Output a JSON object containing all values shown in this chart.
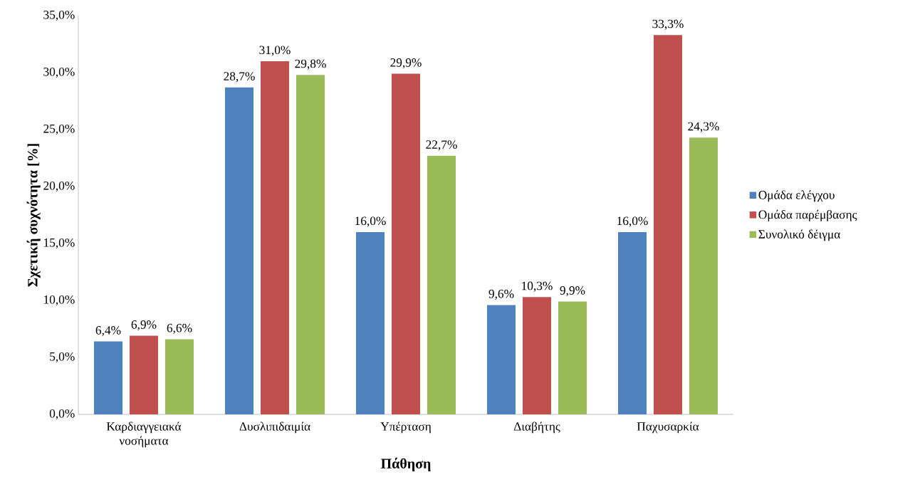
{
  "chart_data": {
    "type": "bar",
    "xlabel": "Πάθηση",
    "ylabel": "Σχετική συχνότητα [%]",
    "categories": [
      "Καρδιαγγειακά νοσήματα",
      "Δυσλιπιδαιμία",
      "Υπέρταση",
      "Διαβήτης",
      "Παχυσαρκία"
    ],
    "series": [
      {
        "name": "Ομάδα ελέγχου",
        "color": "#4f81bd",
        "values": [
          6.4,
          28.7,
          16.0,
          9.6,
          16.0
        ],
        "value_labels": [
          "6,4%",
          "28,7%",
          "16,0%",
          "9,6%",
          "16,0%"
        ]
      },
      {
        "name": "Ομάδα παρέμβασης",
        "color": "#c0504d",
        "values": [
          6.9,
          31.0,
          29.9,
          10.3,
          33.3
        ],
        "value_labels": [
          "6,9%",
          "31,0%",
          "29,9%",
          "10,3%",
          "33,3%"
        ]
      },
      {
        "name": "Συνολικό δέιγμα",
        "color": "#9bbb59",
        "values": [
          6.6,
          29.8,
          22.7,
          9.9,
          24.3
        ],
        "value_labels": [
          "6,6%",
          "29,8%",
          "22,7%",
          "9,9%",
          "24,3%"
        ]
      }
    ],
    "ylim": [
      0,
      35
    ],
    "yticks": [
      {
        "value": 0,
        "label": "0,0%"
      },
      {
        "value": 5,
        "label": "5,0%"
      },
      {
        "value": 10,
        "label": "10,0%"
      },
      {
        "value": 15,
        "label": "15,0%"
      },
      {
        "value": 20,
        "label": "20,0%"
      },
      {
        "value": 25,
        "label": "25,0%"
      },
      {
        "value": 30,
        "label": "30,0%"
      },
      {
        "value": 35,
        "label": "35,0%"
      }
    ],
    "legend": "right"
  }
}
